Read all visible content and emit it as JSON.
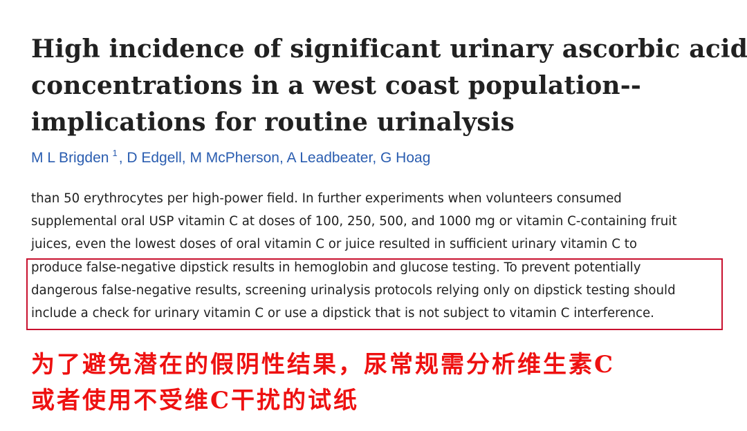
{
  "article": {
    "title_lines": [
      "High incidence of significant urinary ascorbic acid",
      "concentrations in a west coast population--",
      "implications for routine urinalysis"
    ],
    "authors": [
      {
        "name": "M L Brigden",
        "affiliation": "1"
      },
      {
        "name": "D Edgell"
      },
      {
        "name": "M McPherson"
      },
      {
        "name": "A Leadbeater"
      },
      {
        "name": "G Hoag"
      }
    ],
    "author_separator": ",",
    "abstract_lines": [
      "than 50 erythrocytes per high-power field. In further experiments when volunteers consumed",
      "supplemental oral USP vitamin C at doses of 100, 250, 500, and 1000 mg or vitamin C-containing fruit",
      "juices, even the lowest doses of oral vitamin C or juice resulted in sufficient urinary vitamin C to",
      "produce false-negative dipstick results in hemoglobin and glucose testing. To prevent potentially",
      "dangerous false-negative results, screening urinalysis protocols relying only on dipstick testing should",
      "include a check for urinary vitamin C or use a dipstick that is not subject to vitamin C interference."
    ],
    "highlight": {
      "from_line": 3,
      "to_line": 5
    },
    "annotation_lines": [
      "为了避免潜在的假阴性结果，尿常规需分析维生素C",
      "或者使用不受维C干扰的试纸"
    ]
  }
}
